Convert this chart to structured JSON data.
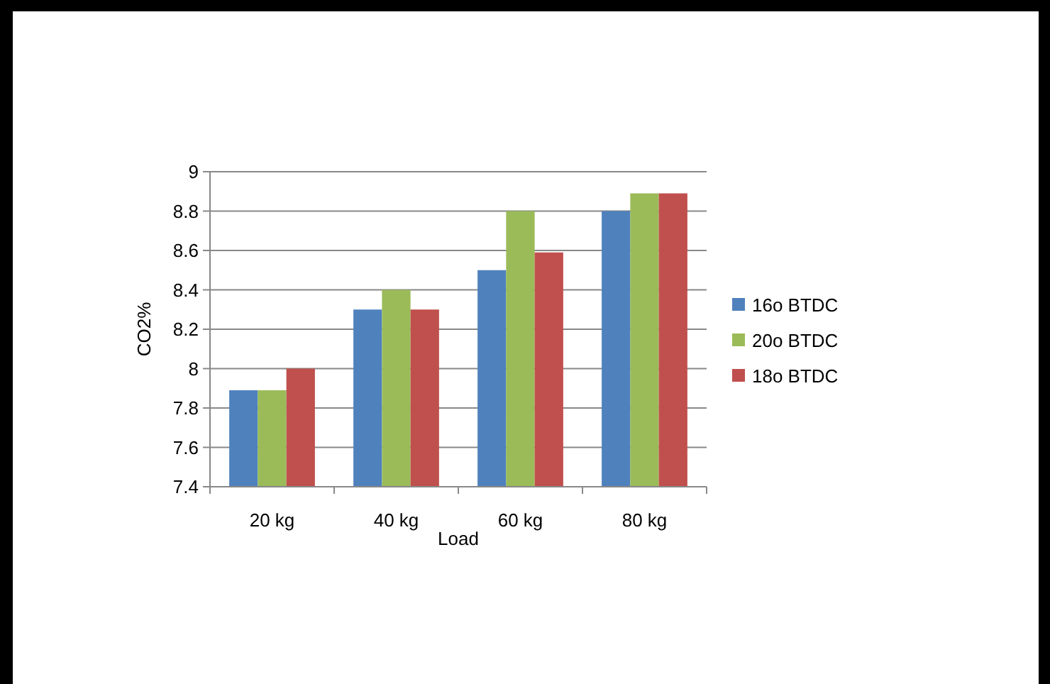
{
  "chart_data": {
    "type": "bar",
    "xlabel": "Load",
    "ylabel": "CO2%",
    "categories": [
      "20 kg",
      "40 kg",
      "60 kg",
      "80 kg"
    ],
    "series": [
      {
        "name": "16o BTDC",
        "color": "#4f81bd",
        "values": [
          7.89,
          8.3,
          8.5,
          8.8
        ]
      },
      {
        "name": "20o BTDC",
        "color": "#9bbb59",
        "values": [
          7.89,
          8.4,
          8.8,
          8.89
        ]
      },
      {
        "name": "18o BTDC",
        "color": "#c0504d",
        "values": [
          8.0,
          8.3,
          8.59,
          8.89
        ]
      }
    ],
    "ylim": [
      7.4,
      9
    ],
    "yticks": [
      7.4,
      7.6,
      7.8,
      8,
      8.2,
      8.4,
      8.6,
      8.8,
      9
    ],
    "grid": "y",
    "legend": "right"
  }
}
